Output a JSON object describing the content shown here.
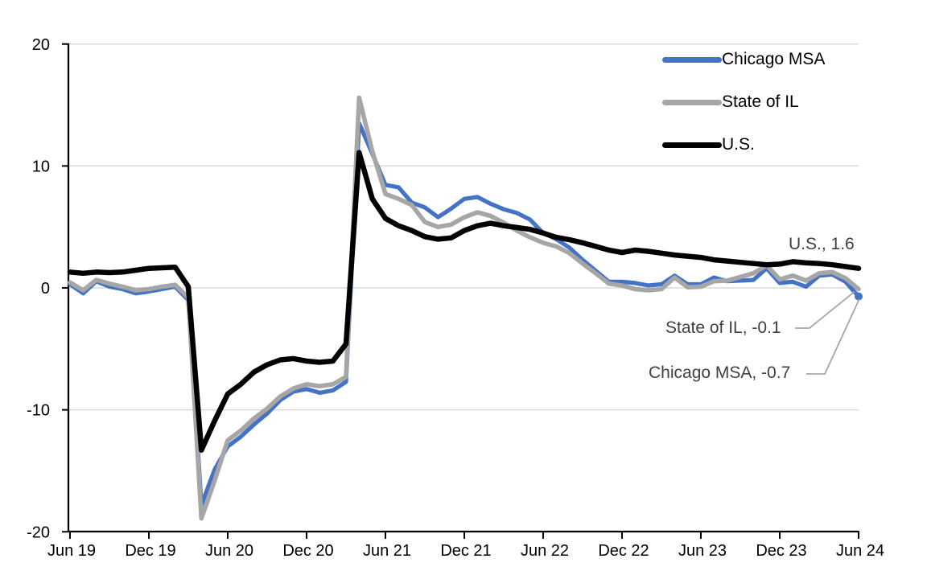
{
  "chart_data": {
    "type": "line",
    "title": "",
    "xlabel": "",
    "ylabel": "",
    "ylim": [
      -20,
      20
    ],
    "grid": "horizontal-gridlines",
    "legend_position": "top-right",
    "x_unit": "month",
    "x_range_months": 61,
    "x_tick_labels": [
      "Jun 19",
      "Dec 19",
      "Jun 20",
      "Dec 20",
      "Jun 21",
      "Dec 21",
      "Jun 22",
      "Dec 22",
      "Jun 23",
      "Dec 23",
      "Jun 24"
    ],
    "x_tick_indices": [
      0,
      6,
      12,
      18,
      24,
      30,
      36,
      42,
      48,
      54,
      60
    ],
    "y_ticks": [
      20,
      10,
      0,
      -10,
      -20
    ],
    "colors": {
      "grid": "#D9D9D9",
      "axis": "#000000",
      "annotation_text": "#404040",
      "leader_line": "#A6A6A6"
    },
    "series": [
      {
        "name": "Chicago MSA",
        "color": "#4472C4",
        "line_width": 5.2,
        "end_value": -0.7,
        "values": [
          0.3,
          -0.45,
          0.55,
          0.1,
          -0.1,
          -0.45,
          -0.3,
          -0.1,
          0.1,
          -1.0,
          -17.8,
          -14.9,
          -13.0,
          -12.2,
          -11.2,
          -10.3,
          -9.2,
          -8.5,
          -8.3,
          -8.6,
          -8.4,
          -7.7,
          13.5,
          11.0,
          8.45,
          8.25,
          7.0,
          6.6,
          5.8,
          6.5,
          7.3,
          7.45,
          6.9,
          6.45,
          6.15,
          5.6,
          4.5,
          4.0,
          3.3,
          2.3,
          1.4,
          0.5,
          0.5,
          0.4,
          0.2,
          0.3,
          1.0,
          0.3,
          0.3,
          0.85,
          0.55,
          0.6,
          0.65,
          1.6,
          0.4,
          0.5,
          0.1,
          1.0,
          1.1,
          0.5,
          -0.7
        ]
      },
      {
        "name": "State of IL",
        "color": "#A6A6A6",
        "line_width": 5.6,
        "end_value": -0.1,
        "values": [
          0.45,
          -0.2,
          0.65,
          0.35,
          0.1,
          -0.2,
          -0.1,
          0.1,
          0.25,
          -0.8,
          -18.9,
          -15.8,
          -12.5,
          -11.7,
          -10.7,
          -9.9,
          -8.9,
          -8.25,
          -7.9,
          -8.05,
          -7.9,
          -7.3,
          15.6,
          11.2,
          7.7,
          7.3,
          6.8,
          5.4,
          5.0,
          5.2,
          5.8,
          6.2,
          5.9,
          5.35,
          4.7,
          4.15,
          3.7,
          3.4,
          2.85,
          2.0,
          1.2,
          0.35,
          0.2,
          -0.1,
          -0.2,
          -0.1,
          0.85,
          0.05,
          0.1,
          0.55,
          0.6,
          0.9,
          1.2,
          1.85,
          0.7,
          1.0,
          0.6,
          1.2,
          1.3,
          0.8,
          -0.1
        ]
      },
      {
        "name": "U.S.",
        "color": "#000000",
        "line_width": 6.5,
        "end_value": 1.6,
        "values": [
          1.3,
          1.2,
          1.3,
          1.25,
          1.3,
          1.45,
          1.6,
          1.65,
          1.7,
          0.1,
          -13.3,
          -10.9,
          -8.7,
          -7.9,
          -6.9,
          -6.3,
          -5.9,
          -5.8,
          -6.0,
          -6.1,
          -6.0,
          -4.6,
          11.1,
          7.3,
          5.7,
          5.1,
          4.7,
          4.2,
          4.0,
          4.1,
          4.7,
          5.1,
          5.3,
          5.1,
          4.95,
          4.8,
          4.5,
          4.15,
          3.95,
          3.7,
          3.4,
          3.1,
          2.9,
          3.1,
          3.0,
          2.85,
          2.7,
          2.6,
          2.5,
          2.3,
          2.2,
          2.1,
          2.0,
          1.9,
          1.95,
          2.15,
          2.05,
          2.0,
          1.9,
          1.75,
          1.6
        ]
      }
    ]
  },
  "legend": {
    "items": [
      "Chicago MSA",
      "State of IL",
      "U.S."
    ]
  },
  "annotations": [
    {
      "text": "U.S., 1.6"
    },
    {
      "text": "State of IL, -0.1"
    },
    {
      "text": "Chicago MSA, -0.7"
    }
  ]
}
